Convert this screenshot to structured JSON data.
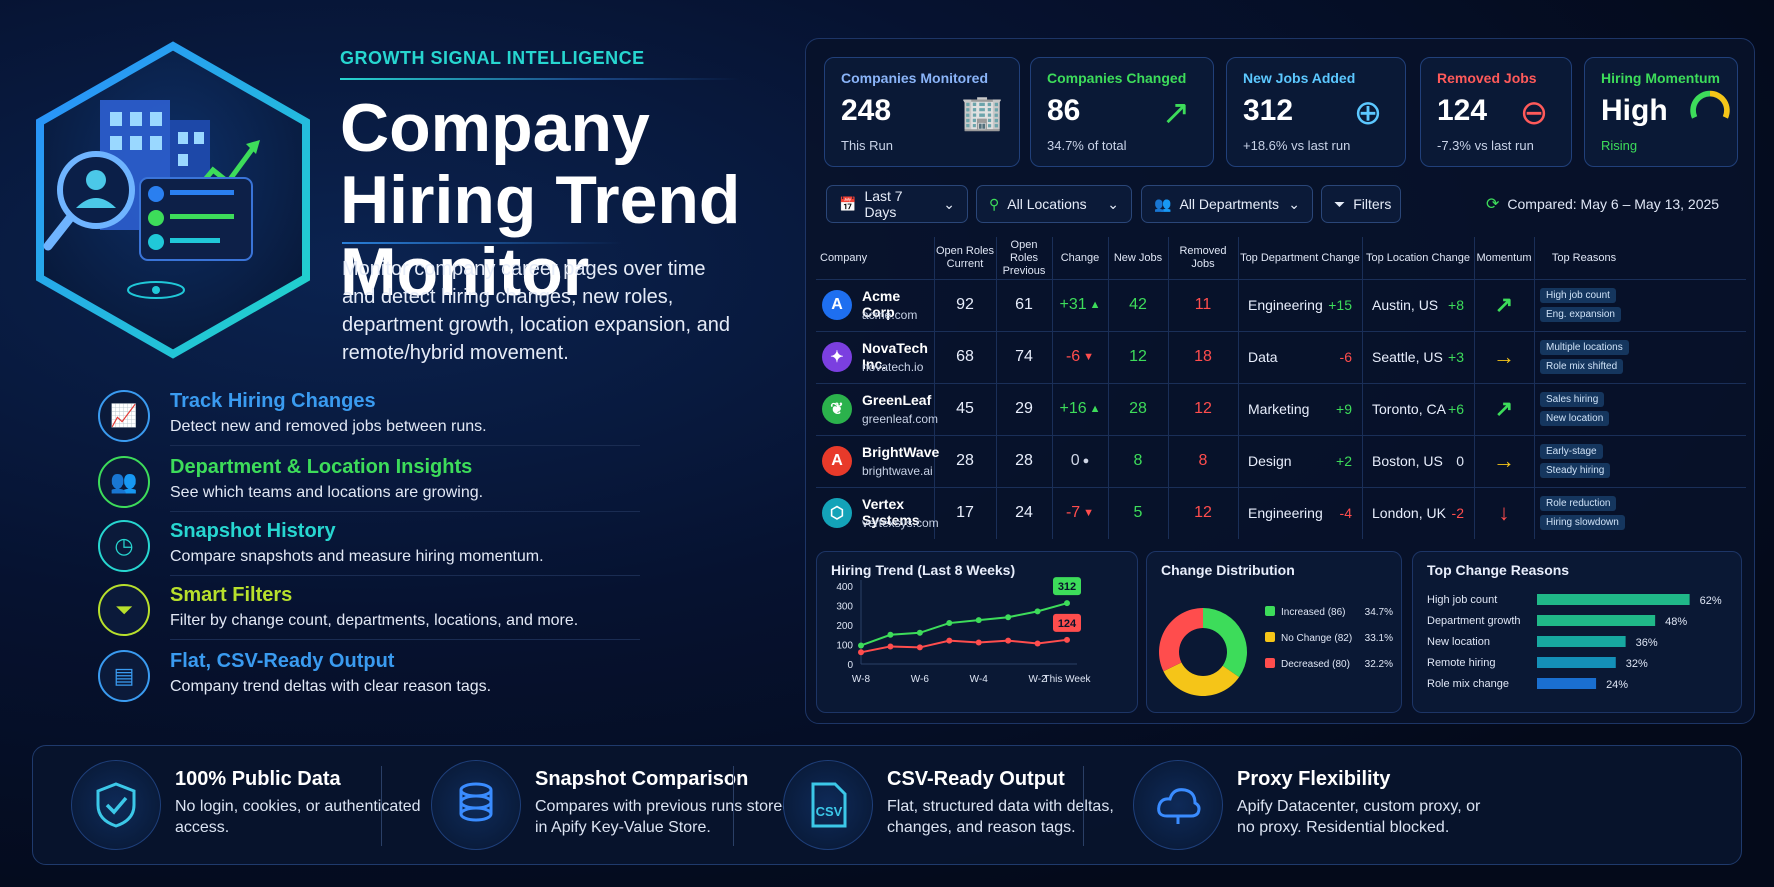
{
  "hero": {
    "eyebrow": "GROWTH SIGNAL INTELLIGENCE",
    "title": "Company Hiring Trend Monitor",
    "description": "Monitor company career pages over time and detect hiring changes, new roles, department growth, location expansion, and remote/hybrid movement."
  },
  "features": [
    {
      "title": "Track Hiring Changes",
      "subtitle": "Detect new and removed jobs between runs.",
      "color": "#3a9bf0",
      "icon": "trend-chart-icon"
    },
    {
      "title": "Department & Location Insights",
      "subtitle": "See which teams and locations are growing.",
      "color": "#3ddc5a",
      "icon": "team-icon"
    },
    {
      "title": "Snapshot History",
      "subtitle": "Compare snapshots and measure hiring momentum.",
      "color": "#27d6d0",
      "icon": "clock-icon"
    },
    {
      "title": "Smart Filters",
      "subtitle": "Filter by change count, departments, locations, and more.",
      "color": "#b8e02c",
      "icon": "funnel-icon"
    },
    {
      "title": "Flat, CSV-Ready Output",
      "subtitle": "Company trend deltas with clear reason tags.",
      "color": "#3a9bf0",
      "icon": "document-icon"
    }
  ],
  "kpis": [
    {
      "label": "Companies Monitored",
      "value": "248",
      "sub": "This Run",
      "color": "#8ab4f8",
      "icon": "building-icon"
    },
    {
      "label": "Companies Changed",
      "value": "86",
      "sub": "34.7% of total",
      "color": "#3ddc5a",
      "icon": "trend-up-icon"
    },
    {
      "label": "New Jobs Added",
      "value": "312",
      "sub": "+18.6% vs last run",
      "color": "#5cc8ff",
      "icon": "plus-circle-icon"
    },
    {
      "label": "Removed Jobs",
      "value": "124",
      "sub": "-7.3% vs last run",
      "color": "#ff5a5a",
      "icon": "minus-circle-icon"
    },
    {
      "label": "Hiring Momentum",
      "value": "High",
      "sub": "Rising",
      "color": "#3ddc5a",
      "icon": "gauge-icon"
    }
  ],
  "filters": {
    "date": "Last 7 Days",
    "location": "All Locations",
    "department": "All Departments",
    "more": "Filters",
    "compared": "Compared:  May 6 – May 13, 2025"
  },
  "table": {
    "headers": [
      "Company",
      "Open Roles Current",
      "Open Roles Previous",
      "Change",
      "New Jobs",
      "Removed Jobs",
      "Top Department Change",
      "Top Location Change",
      "Momentum",
      "Top Reasons"
    ],
    "rows": [
      {
        "name": "Acme Corp",
        "domain": "acme.com",
        "logo": "A",
        "logo_color": "#1e6ff0",
        "current": "92",
        "previous": "61",
        "change": "+31",
        "dir": "up",
        "new": "42",
        "removed": "11",
        "dept": "Engineering",
        "dept_delta": "+15",
        "loc": "Austin, US",
        "loc_delta": "+8",
        "momentum": "↗",
        "mom_color": "#3ddc5a",
        "tags": [
          "High job count",
          "Eng. expansion"
        ]
      },
      {
        "name": "NovaTech Inc.",
        "domain": "novatech.io",
        "logo": "✦",
        "logo_color": "#7b3fe0",
        "current": "68",
        "previous": "74",
        "change": "-6",
        "dir": "down",
        "new": "12",
        "removed": "18",
        "dept": "Data",
        "dept_delta": "-6",
        "loc": "Seattle, US",
        "loc_delta": "+3",
        "momentum": "→",
        "mom_color": "#f5c518",
        "tags": [
          "Multiple locations",
          "Role mix shifted"
        ]
      },
      {
        "name": "GreenLeaf",
        "domain": "greenleaf.com",
        "logo": "❦",
        "logo_color": "#2bb24c",
        "current": "45",
        "previous": "29",
        "change": "+16",
        "dir": "up",
        "new": "28",
        "removed": "12",
        "dept": "Marketing",
        "dept_delta": "+9",
        "loc": "Toronto, CA",
        "loc_delta": "+6",
        "momentum": "↗",
        "mom_color": "#3ddc5a",
        "tags": [
          "Sales hiring",
          "New location"
        ]
      },
      {
        "name": "BrightWave",
        "domain": "brightwave.ai",
        "logo": "A",
        "logo_color": "#e83a2a",
        "current": "28",
        "previous": "28",
        "change": "0",
        "dir": "flat",
        "new": "8",
        "removed": "8",
        "dept": "Design",
        "dept_delta": "+2",
        "loc": "Boston, US",
        "loc_delta": "0",
        "momentum": "→",
        "mom_color": "#f5c518",
        "tags": [
          "Early-stage",
          "Steady hiring"
        ]
      },
      {
        "name": "Vertex Systems",
        "domain": "vertexsys.com",
        "logo": "⬡",
        "logo_color": "#13a3b8",
        "current": "17",
        "previous": "24",
        "change": "-7",
        "dir": "down",
        "new": "5",
        "removed": "12",
        "dept": "Engineering",
        "dept_delta": "-4",
        "loc": "London, UK",
        "loc_delta": "-2",
        "momentum": "↓",
        "mom_color": "#ff4d4d",
        "tags": [
          "Role reduction",
          "Hiring slowdown"
        ]
      }
    ]
  },
  "chart_data": [
    {
      "type": "line",
      "title": "Hiring Trend (Last 8 Weeks)",
      "x": [
        "W-8",
        "W-7",
        "W-6",
        "W-5",
        "W-4",
        "W-3",
        "W-2",
        "This Week"
      ],
      "x_tick_labels": [
        "W-8",
        "W-6",
        "W-4",
        "W-2",
        "This Week"
      ],
      "ylim": [
        0,
        400
      ],
      "yticks": [
        0,
        100,
        200,
        300,
        400
      ],
      "series": [
        {
          "values": [
            95,
            150,
            160,
            210,
            225,
            240,
            270,
            312
          ],
          "color": "#3ddc5a",
          "end_label": "312"
        },
        {
          "values": [
            60,
            90,
            85,
            120,
            110,
            120,
            105,
            124
          ],
          "color": "#ff4d4d",
          "end_label": "124"
        }
      ]
    },
    {
      "type": "pie",
      "title": "Change Distribution",
      "labels": [
        "Increased",
        "No Change",
        "Decreased"
      ],
      "counts": [
        "(86)",
        "(82)",
        "(80)"
      ],
      "values": [
        34.7,
        33.1,
        32.2
      ],
      "value_labels": [
        "34.7%",
        "33.1%",
        "32.2%"
      ],
      "colors": [
        "#3ddc5a",
        "#f5c518",
        "#ff4d4d"
      ]
    },
    {
      "type": "bar",
      "title": "Top Change Reasons",
      "categories": [
        "High job count",
        "Department growth",
        "New location",
        "Remote hiring",
        "Role mix change"
      ],
      "values": [
        62,
        48,
        36,
        32,
        24
      ],
      "value_labels": [
        "62%",
        "48%",
        "36%",
        "32%",
        "24%"
      ],
      "colors": [
        "#20b888",
        "#20b888",
        "#17a8a0",
        "#1490b8",
        "#1a6fd0"
      ]
    }
  ],
  "bottom": [
    {
      "title": "100% Public Data",
      "sub": "No login, cookies, or authenticated access.",
      "icon": "shield-check-icon"
    },
    {
      "title": "Snapshot Comparison",
      "sub": "Compares with previous runs stored in Apify Key-Value Store.",
      "icon": "database-icon"
    },
    {
      "title": "CSV-Ready Output",
      "sub": "Flat, structured data with deltas, changes, and reason tags.",
      "icon": "csv-file-icon",
      "icon_text": "CSV"
    },
    {
      "title": "Proxy Flexibility",
      "sub": "Apify Datacenter, custom proxy, or no proxy. Residential blocked.",
      "icon": "cloud-icon"
    }
  ]
}
